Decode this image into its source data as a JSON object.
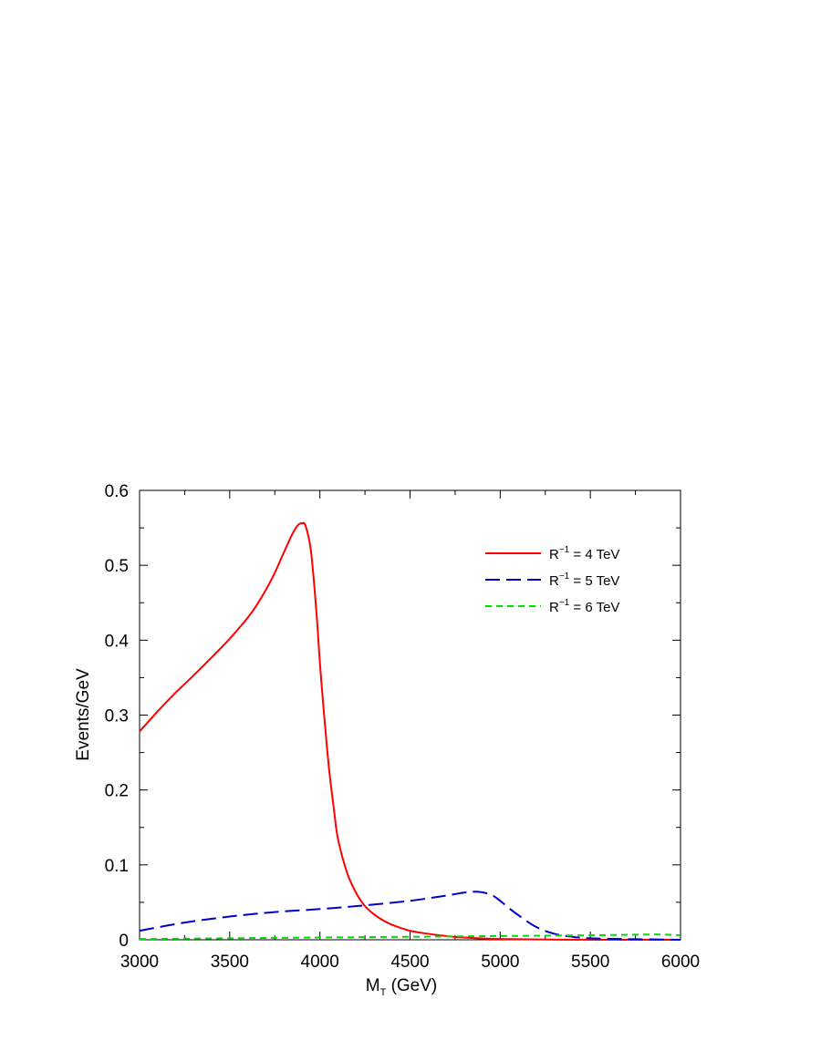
{
  "chart_data": {
    "type": "line",
    "title": "",
    "xlabel": "M",
    "xlabel_sub": "T",
    "xlabel_suffix": " (GeV)",
    "ylabel": "Events/GeV",
    "xlim": [
      3000,
      6000
    ],
    "ylim": [
      0,
      0.6
    ],
    "x_ticks": [
      3000,
      3500,
      4000,
      4500,
      5000,
      5500,
      6000
    ],
    "x_tick_labels": [
      "3000",
      "3500",
      "4000",
      "4500",
      "5000",
      "5500",
      "6000"
    ],
    "y_ticks": [
      0,
      0.1,
      0.2,
      0.3,
      0.4,
      0.5,
      0.6
    ],
    "y_tick_labels": [
      "0",
      "0.1",
      "0.2",
      "0.3",
      "0.4",
      "0.5",
      "0.6"
    ],
    "grid": false,
    "legend_position": "top-right",
    "series": [
      {
        "name": "R⁻¹ = 4 TeV",
        "label_main": "R",
        "label_sup": "−1",
        "label_rest": " = 4 TeV",
        "color": "#ff0000",
        "dash": "solid",
        "x": [
          3000,
          3100,
          3200,
          3300,
          3400,
          3500,
          3600,
          3650,
          3700,
          3750,
          3800,
          3850,
          3880,
          3900,
          3920,
          3950,
          3980,
          4000,
          4020,
          4050,
          4080,
          4100,
          4150,
          4200,
          4250,
          4300,
          4350,
          4400,
          4500,
          4600,
          4700,
          4800,
          5000,
          5500,
          6000
        ],
        "y": [
          0.278,
          0.305,
          0.33,
          0.353,
          0.377,
          0.402,
          0.43,
          0.447,
          0.467,
          0.49,
          0.517,
          0.543,
          0.554,
          0.556,
          0.553,
          0.52,
          0.44,
          0.37,
          0.31,
          0.23,
          0.17,
          0.135,
          0.09,
          0.063,
          0.045,
          0.034,
          0.026,
          0.02,
          0.012,
          0.008,
          0.005,
          0.003,
          0.001,
          0.0,
          0.0
        ]
      },
      {
        "name": "R⁻¹ = 5 TeV",
        "label_main": "R",
        "label_sup": "−1",
        "label_rest": " = 5 TeV",
        "color": "#0000cc",
        "dash": "long-dash",
        "x": [
          3000,
          3250,
          3500,
          3750,
          4000,
          4250,
          4500,
          4700,
          4800,
          4880,
          4950,
          5000,
          5050,
          5100,
          5200,
          5300,
          5400,
          5500,
          5700,
          6000
        ],
        "y": [
          0.012,
          0.023,
          0.031,
          0.037,
          0.041,
          0.046,
          0.052,
          0.059,
          0.063,
          0.064,
          0.06,
          0.052,
          0.042,
          0.033,
          0.017,
          0.008,
          0.004,
          0.002,
          0.001,
          0.0
        ]
      },
      {
        "name": "R⁻¹ = 6 TeV",
        "label_main": "R",
        "label_sup": "−1",
        "label_rest": " = 6 TeV",
        "color": "#00dd00",
        "dash": "short-dash",
        "x": [
          3000,
          3500,
          4000,
          4500,
          5000,
          5500,
          5800,
          5900,
          6000
        ],
        "y": [
          0.001,
          0.002,
          0.003,
          0.004,
          0.005,
          0.006,
          0.007,
          0.007,
          0.006
        ]
      }
    ]
  }
}
